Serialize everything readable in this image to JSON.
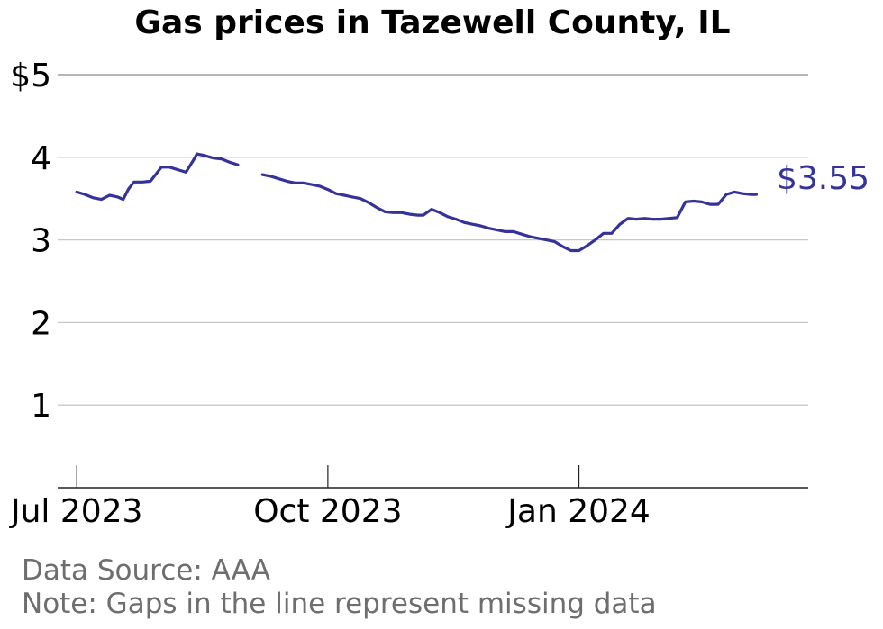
{
  "chart_data": {
    "type": "line",
    "title": "Gas prices in Tazewell County, IL",
    "xlabel": "",
    "ylabel": "",
    "ylim": [
      0,
      5
    ],
    "xlim": [
      "2023-06-24",
      "2024-03-25"
    ],
    "grid": "horizontal",
    "y_ticks": [
      {
        "value": 1,
        "label": "1"
      },
      {
        "value": 2,
        "label": "2"
      },
      {
        "value": 3,
        "label": "3"
      },
      {
        "value": 4,
        "label": "4"
      },
      {
        "value": 5,
        "label": "$5"
      }
    ],
    "x_ticks": [
      {
        "value": "2023-07-01",
        "label": "Jul 2023"
      },
      {
        "value": "2023-10-01",
        "label": "Oct 2023"
      },
      {
        "value": "2024-01-01",
        "label": "Jan 2024"
      }
    ],
    "line_color": "#35329a",
    "end_label": "$3.55",
    "series": [
      {
        "segments": [
          [
            [
              "2023-07-01",
              3.58
            ],
            [
              "2023-07-04",
              3.55
            ],
            [
              "2023-07-07",
              3.51
            ],
            [
              "2023-07-10",
              3.49
            ],
            [
              "2023-07-13",
              3.54
            ],
            [
              "2023-07-16",
              3.52
            ],
            [
              "2023-07-18",
              3.49
            ],
            [
              "2023-07-20",
              3.62
            ],
            [
              "2023-07-22",
              3.7
            ],
            [
              "2023-07-25",
              3.7
            ],
            [
              "2023-07-28",
              3.71
            ],
            [
              "2023-08-01",
              3.88
            ],
            [
              "2023-08-04",
              3.88
            ],
            [
              "2023-08-07",
              3.85
            ],
            [
              "2023-08-10",
              3.82
            ],
            [
              "2023-08-13",
              3.98
            ],
            [
              "2023-08-14",
              4.04
            ],
            [
              "2023-08-17",
              4.02
            ],
            [
              "2023-08-20",
              3.99
            ],
            [
              "2023-08-23",
              3.98
            ],
            [
              "2023-08-26",
              3.94
            ],
            [
              "2023-08-29",
              3.91
            ]
          ],
          [
            [
              "2023-09-07",
              3.79
            ],
            [
              "2023-09-10",
              3.77
            ],
            [
              "2023-09-13",
              3.74
            ],
            [
              "2023-09-16",
              3.71
            ],
            [
              "2023-09-19",
              3.69
            ],
            [
              "2023-09-22",
              3.69
            ],
            [
              "2023-09-25",
              3.67
            ],
            [
              "2023-09-28",
              3.65
            ],
            [
              "2023-10-01",
              3.61
            ],
            [
              "2023-10-04",
              3.56
            ],
            [
              "2023-10-07",
              3.54
            ],
            [
              "2023-10-10",
              3.52
            ],
            [
              "2023-10-13",
              3.5
            ],
            [
              "2023-10-16",
              3.45
            ],
            [
              "2023-10-19",
              3.39
            ],
            [
              "2023-10-22",
              3.34
            ],
            [
              "2023-10-25",
              3.33
            ],
            [
              "2023-10-28",
              3.33
            ],
            [
              "2023-10-31",
              3.31
            ],
            [
              "2023-11-03",
              3.3
            ],
            [
              "2023-11-05",
              3.3
            ],
            [
              "2023-11-08",
              3.37
            ],
            [
              "2023-11-11",
              3.33
            ],
            [
              "2023-11-14",
              3.28
            ],
            [
              "2023-11-17",
              3.25
            ],
            [
              "2023-11-20",
              3.21
            ],
            [
              "2023-11-23",
              3.19
            ],
            [
              "2023-11-26",
              3.17
            ],
            [
              "2023-11-29",
              3.14
            ],
            [
              "2023-12-02",
              3.12
            ],
            [
              "2023-12-05",
              3.1
            ],
            [
              "2023-12-08",
              3.1
            ],
            [
              "2023-12-11",
              3.07
            ],
            [
              "2023-12-14",
              3.04
            ],
            [
              "2023-12-17",
              3.02
            ],
            [
              "2023-12-20",
              3.0
            ],
            [
              "2023-12-23",
              2.98
            ],
            [
              "2023-12-26",
              2.92
            ],
            [
              "2023-12-29",
              2.87
            ],
            [
              "2024-01-01",
              2.87
            ],
            [
              "2024-01-04",
              2.93
            ],
            [
              "2024-01-07",
              3.0
            ],
            [
              "2024-01-10",
              3.08
            ],
            [
              "2024-01-13",
              3.08
            ],
            [
              "2024-01-16",
              3.19
            ],
            [
              "2024-01-19",
              3.26
            ],
            [
              "2024-01-22",
              3.25
            ],
            [
              "2024-01-25",
              3.26
            ],
            [
              "2024-01-28",
              3.25
            ],
            [
              "2024-01-31",
              3.25
            ],
            [
              "2024-02-03",
              3.26
            ],
            [
              "2024-02-06",
              3.27
            ],
            [
              "2024-02-09",
              3.46
            ],
            [
              "2024-02-12",
              3.47
            ],
            [
              "2024-02-15",
              3.46
            ],
            [
              "2024-02-18",
              3.43
            ],
            [
              "2024-02-21",
              3.43
            ],
            [
              "2024-02-24",
              3.55
            ],
            [
              "2024-02-27",
              3.58
            ],
            [
              "2024-03-01",
              3.56
            ],
            [
              "2024-03-04",
              3.55
            ],
            [
              "2024-03-06",
              3.55
            ]
          ]
        ]
      }
    ]
  },
  "footer": {
    "source": "Data Source: AAA",
    "note": "Note: Gaps in the line represent missing data"
  }
}
